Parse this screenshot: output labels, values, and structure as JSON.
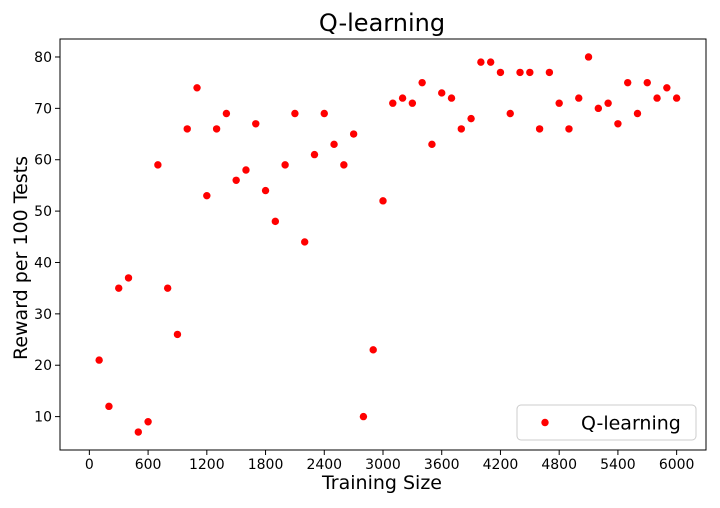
{
  "chart_data": {
    "type": "scatter",
    "title": "Q-learning",
    "xlabel": "Training Size",
    "ylabel": "Reward per 100 Tests",
    "xlim": [
      -300,
      6300
    ],
    "ylim": [
      3.5,
      83.5
    ],
    "xticks": [
      0,
      600,
      1200,
      1800,
      2400,
      3000,
      3600,
      4200,
      4800,
      5400,
      6000
    ],
    "yticks": [
      10,
      20,
      30,
      40,
      50,
      60,
      70,
      80
    ],
    "grid": false,
    "legend": "lower-right",
    "series": [
      {
        "name": "Q-learning",
        "color": "#ff0000",
        "marker": "circle",
        "x": [
          100,
          200,
          300,
          400,
          500,
          600,
          700,
          800,
          900,
          1000,
          1100,
          1200,
          1300,
          1400,
          1500,
          1600,
          1700,
          1800,
          1900,
          2000,
          2100,
          2200,
          2300,
          2400,
          2500,
          2600,
          2700,
          2800,
          2900,
          3000,
          3100,
          3200,
          3300,
          3400,
          3500,
          3600,
          3700,
          3800,
          3900,
          4000,
          4100,
          4200,
          4300,
          4400,
          4500,
          4600,
          4700,
          4800,
          4900,
          5000,
          5100,
          5200,
          5300,
          5400,
          5500,
          5600,
          5700,
          5800,
          5900,
          6000
        ],
        "y": [
          21,
          12,
          35,
          37,
          7,
          9,
          59,
          35,
          26,
          66,
          74,
          53,
          66,
          69,
          56,
          58,
          67,
          54,
          48,
          59,
          69,
          44,
          61,
          69,
          63,
          59,
          65,
          10,
          23,
          52,
          71,
          72,
          71,
          75,
          63,
          73,
          72,
          66,
          68,
          79,
          79,
          77,
          69,
          77,
          77,
          66,
          77,
          71,
          66,
          72,
          80,
          70,
          71,
          67,
          75,
          69,
          75,
          72,
          74,
          72
        ]
      }
    ]
  }
}
